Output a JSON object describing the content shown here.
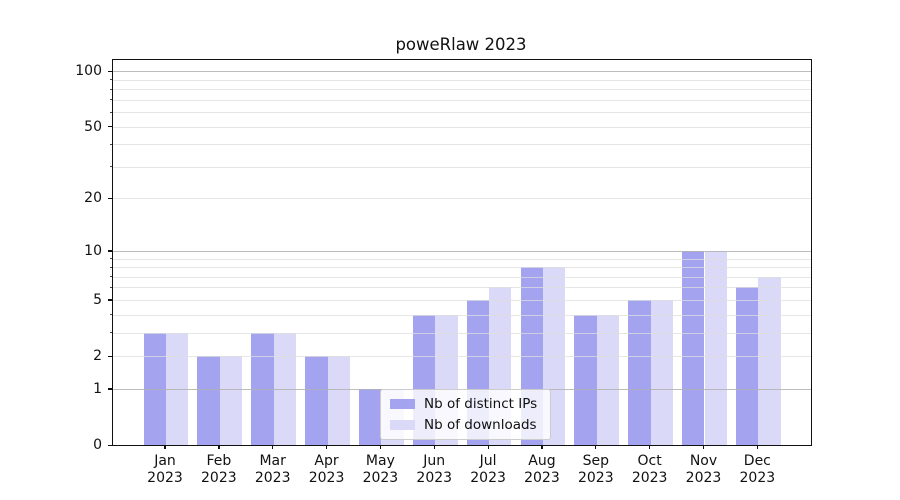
{
  "chart_data": {
    "type": "bar",
    "title": "poweRlaw 2023",
    "categories": [
      "Jan",
      "Feb",
      "Mar",
      "Apr",
      "May",
      "Jun",
      "Jul",
      "Aug",
      "Sep",
      "Oct",
      "Nov",
      "Dec"
    ],
    "category_year": "2023",
    "series": [
      {
        "name": "Nb of distinct IPs",
        "color": "#a3a3ef",
        "values": [
          3,
          2,
          3,
          2,
          1,
          4,
          5,
          8,
          4,
          5,
          10,
          6
        ]
      },
      {
        "name": "Nb of downloads",
        "color": "#dadaf8",
        "values": [
          3,
          2,
          3,
          2,
          1,
          4,
          6,
          8,
          4,
          5,
          10,
          7
        ]
      }
    ],
    "xlabel": "",
    "ylabel": "",
    "yscale": "log1p",
    "ytick_labels": [
      "0",
      "1",
      "2",
      "5",
      "10",
      "20",
      "50",
      "100"
    ],
    "ytick_values": [
      0,
      1,
      2,
      5,
      10,
      20,
      50,
      100
    ],
    "major_gridlines": [
      1,
      10,
      100
    ],
    "minor_gridlines": [
      2,
      3,
      4,
      5,
      6,
      7,
      8,
      9,
      20,
      30,
      40,
      50,
      60,
      70,
      80,
      90
    ],
    "ylim": [
      0,
      115
    ],
    "grid": "on",
    "legend_position": "lower center",
    "text_color": "#111111"
  }
}
